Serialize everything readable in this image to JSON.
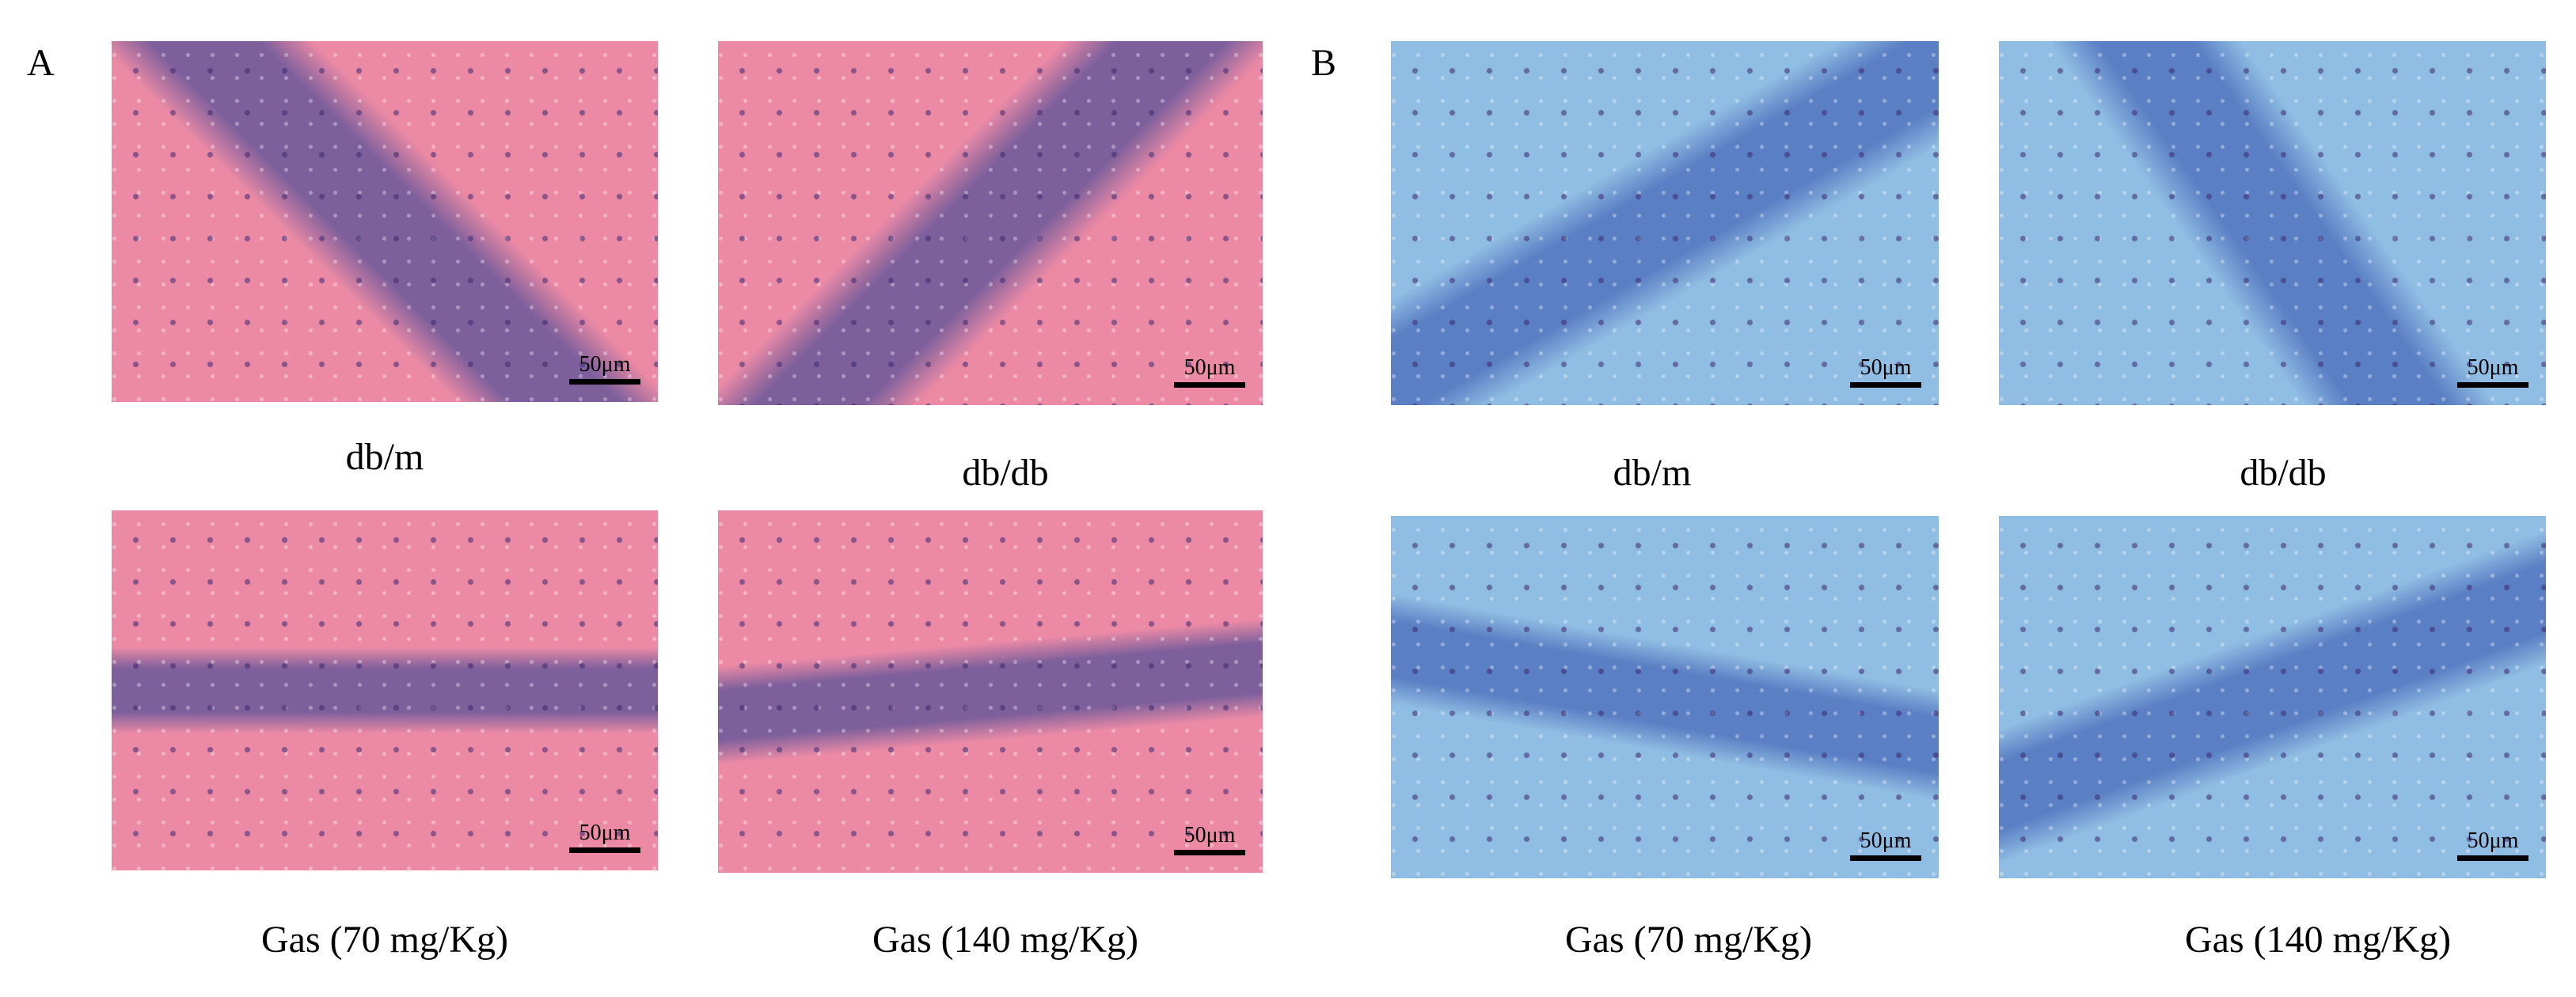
{
  "panels": [
    {
      "label": "A",
      "images": [
        {
          "caption": "db/m",
          "scale_bar": "50μm"
        },
        {
          "caption": "db/db",
          "scale_bar": "50μm"
        },
        {
          "caption": "Gas (70 mg/Kg)",
          "scale_bar": "50μm"
        },
        {
          "caption": "Gas (140 mg/Kg)",
          "scale_bar": "50μm"
        }
      ]
    },
    {
      "label": "B",
      "images": [
        {
          "caption": "db/m",
          "scale_bar": "50μm"
        },
        {
          "caption": "db/db",
          "scale_bar": "50μm"
        },
        {
          "caption": "Gas (70 mg/Kg)",
          "scale_bar": "50μm"
        },
        {
          "caption": "Gas (140 mg/Kg)",
          "scale_bar": "50μm"
        }
      ]
    }
  ]
}
